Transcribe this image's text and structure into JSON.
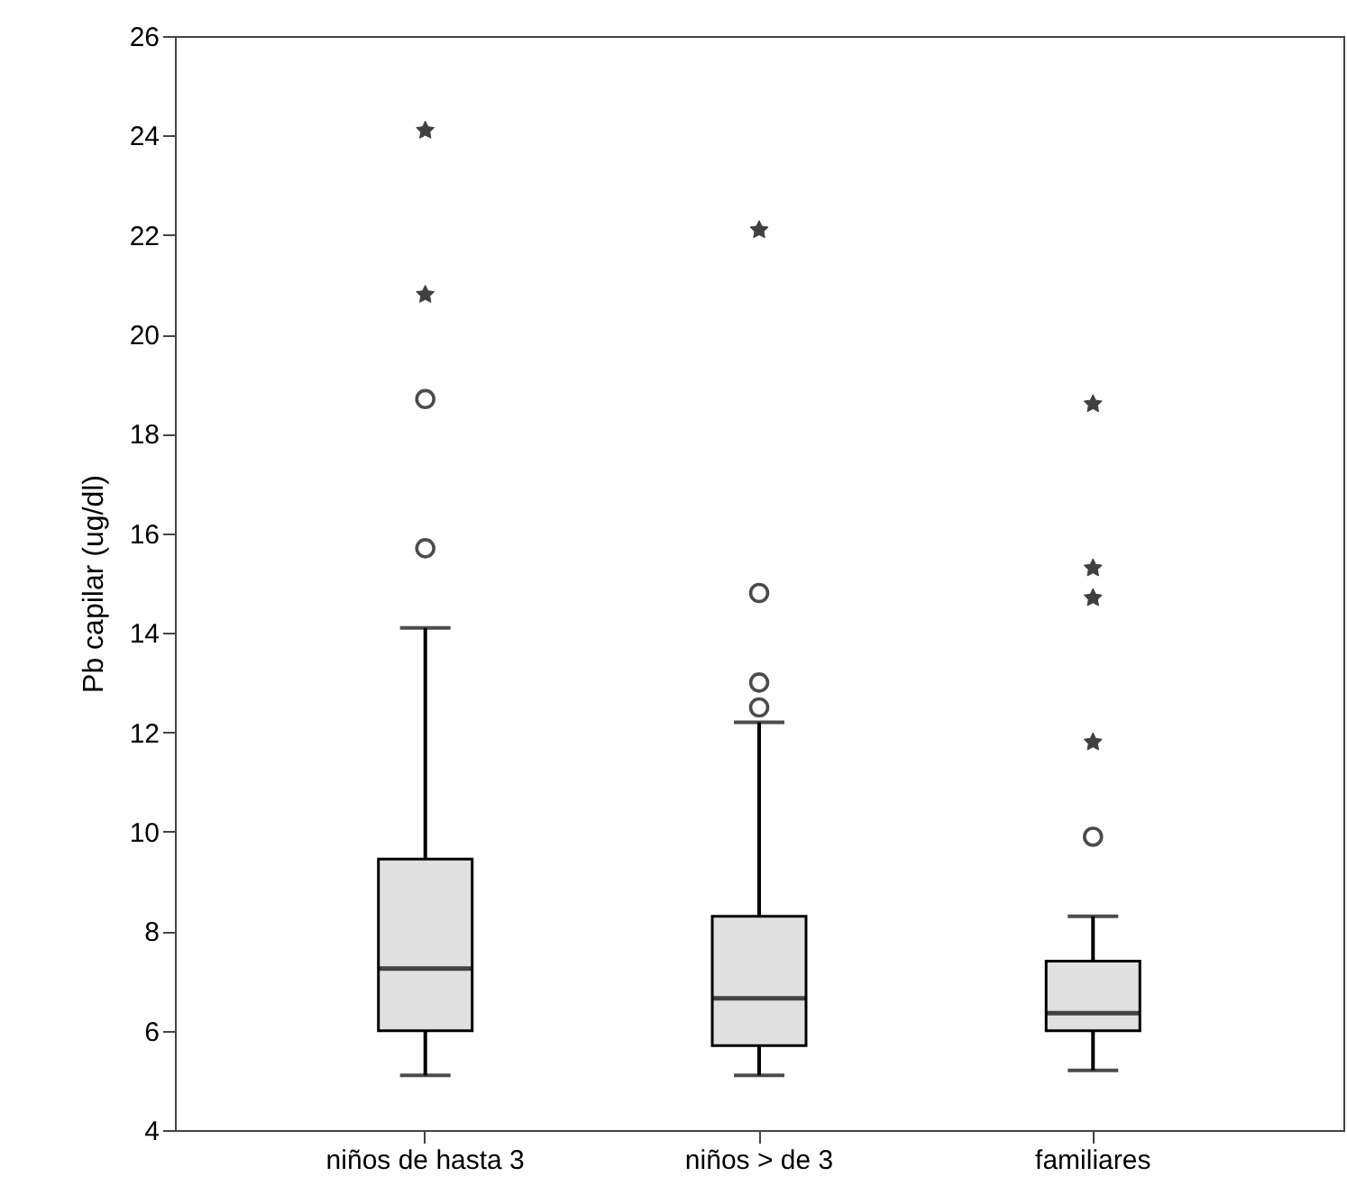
{
  "chart_data": {
    "type": "box",
    "ylabel": "Pb capilar (ug/dl)",
    "categories": [
      "niños de hasta 3",
      "niños > de 3",
      "familiares"
    ],
    "color": "#e0e0e0",
    "boxes": [
      {
        "low": 5.1,
        "q1": 6.0,
        "median": 7.25,
        "q3": 9.45,
        "high": 14.1,
        "outliers": [
          15.7,
          18.7
        ]
      },
      {
        "low": 5.1,
        "q1": 5.7,
        "median": 6.65,
        "q3": 8.3,
        "high": 12.2,
        "outliers": [
          12.5,
          13.0,
          14.8
        ]
      },
      {
        "low": 5.2,
        "q1": 6.0,
        "median": 6.35,
        "q3": 7.4,
        "high": 8.3,
        "outliers": [
          9.9
        ]
      }
    ],
    "series": [
      {
        "type": "scatter",
        "marker": "star",
        "color": "#404040",
        "x": [
          "niños de hasta 3",
          "niños de hasta 3",
          "niños > de 3",
          "familiares",
          "familiares",
          "familiares",
          "familiares"
        ],
        "values": [
          20.8,
          24.1,
          22.1,
          11.8,
          14.7,
          15.3,
          18.6
        ]
      }
    ],
    "ylim": [
      4,
      26
    ],
    "yticks": [
      4,
      6,
      8,
      10,
      12,
      14,
      16,
      18,
      20,
      22,
      24,
      26
    ],
    "grid": false
  }
}
